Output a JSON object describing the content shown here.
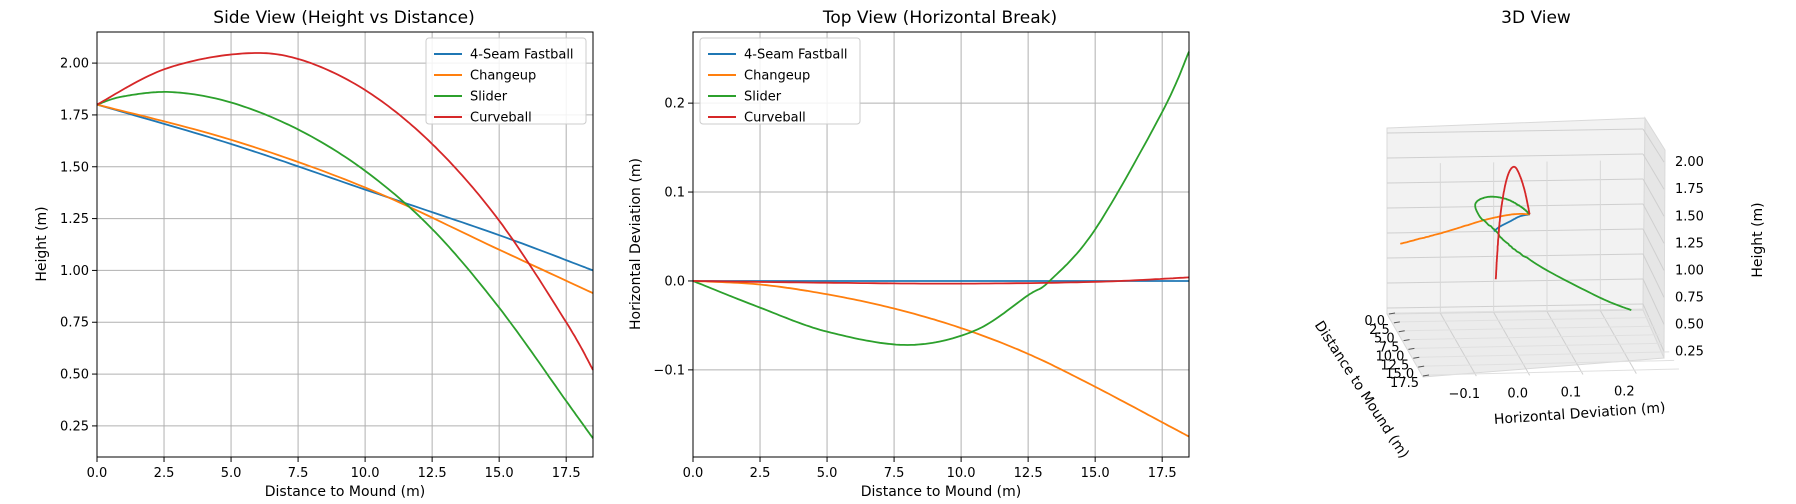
{
  "colors": {
    "4-Seam Fastball": "#1f77b4",
    "Changeup": "#ff7f0e",
    "Slider": "#2ca02c",
    "Curveball": "#d62728"
  },
  "chart_data": [
    {
      "type": "line",
      "title": "Side View (Height vs Distance)",
      "xlabel": "Distance to Mound (m)",
      "ylabel": "Height (m)",
      "xlim": [
        0,
        18.5
      ],
      "ylim": [
        0.1,
        2.15
      ],
      "xticks": [
        "0.0",
        "2.5",
        "5.0",
        "7.5",
        "10.0",
        "12.5",
        "15.0",
        "17.5"
      ],
      "yticks": [
        "0.25",
        "0.50",
        "0.75",
        "1.00",
        "1.25",
        "1.50",
        "1.75",
        "2.00"
      ],
      "grid": true,
      "legend": "upper right",
      "series": [
        {
          "name": "4-Seam Fastball",
          "x": [
            0,
            5,
            10,
            15,
            18.5
          ],
          "y": [
            1.8,
            1.61,
            1.39,
            1.17,
            1.0
          ]
        },
        {
          "name": "Changeup",
          "x": [
            0,
            5,
            10,
            15,
            18.5
          ],
          "y": [
            1.8,
            1.63,
            1.4,
            1.1,
            0.89
          ]
        },
        {
          "name": "Slider",
          "x": [
            0,
            1,
            2.8,
            5,
            7.5,
            10,
            12.5,
            15,
            17.5,
            18.5
          ],
          "y": [
            1.8,
            1.84,
            1.86,
            1.81,
            1.68,
            1.48,
            1.2,
            0.82,
            0.37,
            0.19
          ]
        },
        {
          "name": "Curveball",
          "x": [
            0,
            2.5,
            5.3,
            7.5,
            10,
            12.5,
            15,
            17.5,
            18.5
          ],
          "y": [
            1.8,
            1.97,
            2.045,
            2.02,
            1.87,
            1.61,
            1.24,
            0.75,
            0.52
          ]
        }
      ]
    },
    {
      "type": "line",
      "title": "Top View (Horizontal Break)",
      "xlabel": "Distance to Mound (m)",
      "ylabel": "Horizontal Deviation (m)",
      "xlim": [
        0,
        18.5
      ],
      "ylim": [
        -0.198,
        0.28
      ],
      "xticks": [
        "0.0",
        "2.5",
        "5.0",
        "7.5",
        "10.0",
        "12.5",
        "15.0",
        "17.5"
      ],
      "yticks": [
        "−0.1",
        "0.0",
        "0.1",
        "0.2"
      ],
      "grid": true,
      "legend": "upper left",
      "series": [
        {
          "name": "4-Seam Fastball",
          "x": [
            0,
            18.5
          ],
          "y": [
            0,
            0
          ]
        },
        {
          "name": "Changeup",
          "x": [
            0,
            2.5,
            5,
            7.5,
            10,
            12.5,
            15,
            17.5,
            18.5
          ],
          "y": [
            0,
            -0.004,
            -0.015,
            -0.031,
            -0.053,
            -0.082,
            -0.119,
            -0.159,
            -0.175
          ]
        },
        {
          "name": "Slider",
          "x": [
            0,
            2.5,
            5,
            8,
            10.5,
            12.5,
            13.3,
            15,
            17.5,
            18.5
          ],
          "y": [
            0,
            -0.03,
            -0.057,
            -0.072,
            -0.056,
            -0.016,
            0,
            0.058,
            0.19,
            0.258
          ]
        },
        {
          "name": "Curveball",
          "x": [
            0,
            5,
            10,
            15,
            18.5
          ],
          "y": [
            0,
            -0.002,
            -0.003,
            -0.001,
            0.004
          ]
        }
      ]
    },
    {
      "type": "line3d",
      "title": "3D View",
      "xlabel": "Horizontal Deviation (m)",
      "ylabel": "Distance to Mound (m)",
      "zlabel": "Height (m)",
      "xticks": [
        "−0.1",
        "0.0",
        "0.1",
        "0.2"
      ],
      "yticks": [
        "0.0",
        "2.5",
        "5.0",
        "7.5",
        "10.0",
        "12.5",
        "15.0",
        "17.5"
      ],
      "zticks": [
        "0.25",
        "0.50",
        "0.75",
        "1.00",
        "1.25",
        "1.50",
        "1.75",
        "2.00"
      ],
      "grid": true
    }
  ]
}
